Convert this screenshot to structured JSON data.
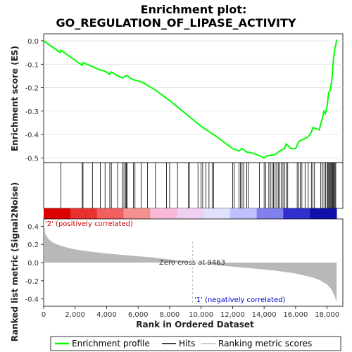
{
  "chart_data": {
    "type": "line",
    "title_line1": "Enrichment plot:",
    "title_line2": "GO_REGULATION_OF_LIPASE_ACTIVITY",
    "top_panel": {
      "ylabel": "Enrichment score (ES)",
      "ylim": [
        -0.52,
        0.03
      ],
      "yticks": [
        0.0,
        -0.1,
        -0.2,
        -0.3,
        -0.4,
        -0.5
      ],
      "ytick_labels": [
        "0.0",
        "-0.1",
        "-0.2",
        "-0.3",
        "-0.4",
        "-0.5"
      ],
      "grid": true,
      "line_color": "#00ff00",
      "profile_x": [
        0,
        1050,
        1100,
        2450,
        2500,
        3100,
        3600,
        3900,
        4200,
        4300,
        4700,
        5000,
        5200,
        5300,
        5500,
        5800,
        6200,
        6600,
        7100,
        8000,
        9000,
        10000,
        11000,
        12000,
        12400,
        12600,
        12900,
        13300,
        13700,
        14000,
        14200,
        14400,
        14700,
        15000,
        15300,
        15400,
        15700,
        16000,
        16200,
        16500,
        16800,
        17000,
        17100,
        17500,
        17700,
        17800,
        17900,
        18000,
        18100,
        18200,
        18300,
        18400,
        18500,
        18550,
        18600
      ],
      "profile_y": [
        0.0,
        -0.05,
        -0.04,
        -0.105,
        -0.093,
        -0.11,
        -0.125,
        -0.13,
        -0.143,
        -0.133,
        -0.15,
        -0.158,
        -0.15,
        -0.148,
        -0.16,
        -0.168,
        -0.175,
        -0.19,
        -0.21,
        -0.255,
        -0.31,
        -0.365,
        -0.41,
        -0.46,
        -0.47,
        -0.46,
        -0.475,
        -0.48,
        -0.49,
        -0.5,
        -0.49,
        -0.49,
        -0.485,
        -0.47,
        -0.46,
        -0.44,
        -0.46,
        -0.46,
        -0.43,
        -0.42,
        -0.41,
        -0.39,
        -0.37,
        -0.38,
        -0.33,
        -0.3,
        -0.31,
        -0.28,
        -0.22,
        -0.21,
        -0.17,
        -0.08,
        -0.03,
        -0.02,
        0.005
      ]
    },
    "hits_panel": {
      "hit_positions": [
        1100,
        2450,
        2500,
        3100,
        3600,
        3900,
        4200,
        4300,
        4700,
        5000,
        5100,
        5200,
        5250,
        5300,
        5700,
        5800,
        6200,
        6600,
        7100,
        7800,
        8000,
        8500,
        9200,
        9250,
        9800,
        10000,
        10100,
        10300,
        10500,
        10700,
        10800,
        12000,
        12100,
        12400,
        12500,
        12600,
        12700,
        12900,
        13000,
        13700,
        14000,
        14100,
        14300,
        14400,
        14500,
        14600,
        14700,
        14800,
        14900,
        15000,
        15100,
        15200,
        15300,
        15400,
        15500,
        16100,
        16200,
        16300,
        16400,
        16600,
        16800,
        17000,
        17100,
        17200,
        17600,
        17700,
        17800,
        17900,
        18000,
        18050,
        18100,
        18150,
        18200,
        18250,
        18300,
        18350,
        18400,
        18450,
        18500,
        18550
      ]
    },
    "colorbar_colors": [
      "#dd0000",
      "#e83030",
      "#f06060",
      "#f59090",
      "#f8b8d8",
      "#f0d0f0",
      "#e0e0ff",
      "#c0c0ff",
      "#8080ee",
      "#3030cc",
      "#1010aa"
    ],
    "bottom_panel": {
      "ylabel": "Ranked list metric (Signal2Noise)",
      "xlabel": "Rank in Ordered Dataset",
      "ylim": [
        -0.48,
        0.48
      ],
      "yticks": [
        0.4,
        0.2,
        0.0,
        -0.2,
        -0.4
      ],
      "ytick_labels": [
        "0.4",
        "0.2",
        "0.0",
        "-0.2",
        "-0.4"
      ],
      "xlim": [
        0,
        19000
      ],
      "xticks": [
        0,
        2000,
        4000,
        6000,
        8000,
        10000,
        12000,
        14000,
        16000,
        18000
      ],
      "xtick_labels": [
        "0",
        "2,000",
        "4,000",
        "6,000",
        "8,000",
        "10,000",
        "12,000",
        "14,000",
        "16,000",
        "18,000"
      ],
      "metric_x": [
        0,
        100,
        300,
        600,
        1000,
        1500,
        2000,
        3000,
        4000,
        5000,
        6000,
        7000,
        8000,
        9000,
        9463,
        10000,
        11000,
        12000,
        13000,
        14000,
        15000,
        16000,
        17000,
        17500,
        18000,
        18300,
        18500,
        18600
      ],
      "metric_y": [
        0.45,
        0.32,
        0.26,
        0.22,
        0.19,
        0.165,
        0.145,
        0.12,
        0.1,
        0.085,
        0.07,
        0.055,
        0.035,
        0.015,
        0.0,
        -0.01,
        -0.03,
        -0.045,
        -0.06,
        -0.075,
        -0.095,
        -0.12,
        -0.16,
        -0.19,
        -0.24,
        -0.3,
        -0.38,
        -0.44
      ],
      "positive_label": "'2' (positively correlated)",
      "negative_label": "'1' (negatively correlated)",
      "zero_cross_label": "Zero cross at 9463",
      "zero_cross_x": 9463
    },
    "legend": {
      "entries": [
        "Enrichment profile",
        "Hits",
        "Ranking metric scores"
      ]
    }
  }
}
